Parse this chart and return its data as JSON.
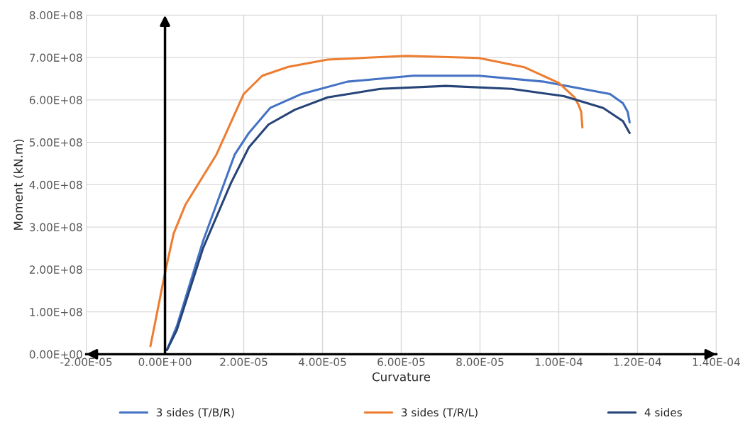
{
  "chart_data": {
    "type": "line",
    "xlabel": "Curvature",
    "ylabel": "Moment (kN.m)",
    "xlim": [
      -2e-05,
      0.00014
    ],
    "xticks": [
      {
        "value": -2e-05,
        "label": "-2.00E-05"
      },
      {
        "value": 0,
        "label": "0.00E+00"
      },
      {
        "value": 2e-05,
        "label": "2.00E-05"
      },
      {
        "value": 4e-05,
        "label": "4.00E-05"
      },
      {
        "value": 6e-05,
        "label": "6.00E-05"
      },
      {
        "value": 8e-05,
        "label": "8.00E-05"
      },
      {
        "value": 0.0001,
        "label": "1.00E-04"
      },
      {
        "value": 0.00012,
        "label": "1.20E-04"
      },
      {
        "value": 0.00014,
        "label": "1.40E-04"
      }
    ],
    "ylim": [
      0,
      800000000
    ],
    "yticks": [
      {
        "value": 0,
        "label": "0.00E+00"
      },
      {
        "value": 100000000,
        "label": "1.00E+08"
      },
      {
        "value": 200000000,
        "label": "2.00E+08"
      },
      {
        "value": 300000000,
        "label": "3.00E+08"
      },
      {
        "value": 400000000,
        "label": "4.00E+08"
      },
      {
        "value": 500000000,
        "label": "5.00E+08"
      },
      {
        "value": 600000000,
        "label": "6.00E+08"
      },
      {
        "value": 700000000,
        "label": "7.00E+08"
      },
      {
        "value": 800000000,
        "label": "8.00E+08"
      }
    ],
    "grid": true,
    "legend": "bottom",
    "marker": "none",
    "line_style": "solid",
    "series": [
      {
        "name": "3 sides (T/B/R)",
        "color": "#4472c4",
        "x": [
          5e-07,
          3e-06,
          9.7e-06,
          1.77e-05,
          2.13e-05,
          2.67e-05,
          3.47e-05,
          4.63e-05,
          6.3e-05,
          7.97e-05,
          9.63e-05,
          0.000113,
          0.0001163,
          0.0001175,
          0.000118
        ],
        "values": [
          10000000,
          66000000,
          268000000,
          471000000,
          522000000,
          581000000,
          614000000,
          643000000,
          657000000,
          657000000,
          643000000,
          614000000,
          592000000,
          572000000,
          547000000
        ]
      },
      {
        "name": "3 sides (T/R/L)",
        "color": "#ed7d31",
        "x": [
          -3.7e-06,
          0,
          2.2e-06,
          5.2e-06,
          7.2e-06,
          1.3e-05,
          2e-05,
          2.47e-05,
          3.13e-05,
          4.13e-05,
          6.13e-05,
          7.97e-05,
          9.13e-05,
          0.0001,
          0.000104,
          0.000105,
          0.0001057,
          0.000106
        ],
        "values": [
          19000000,
          192000000,
          285000000,
          353000000,
          383000000,
          470000000,
          614000000,
          657000000,
          678000000,
          695000000,
          704000000,
          699000000,
          677000000,
          640000000,
          606000000,
          589000000,
          572000000,
          535000000
        ]
      },
      {
        "name": "4 sides",
        "color": "#264478",
        "x": [
          5e-07,
          3e-06,
          9.7e-06,
          1.67e-05,
          2.13e-05,
          2.63e-05,
          3.3e-05,
          4.13e-05,
          5.47e-05,
          7.13e-05,
          8.8e-05,
          0.0001013,
          0.0001113,
          0.0001163,
          0.000118
        ],
        "values": [
          10000000,
          57000000,
          251000000,
          403000000,
          488000000,
          542000000,
          577000000,
          606000000,
          626000000,
          633000000,
          626000000,
          609000000,
          581000000,
          550000000,
          522000000
        ]
      }
    ]
  }
}
